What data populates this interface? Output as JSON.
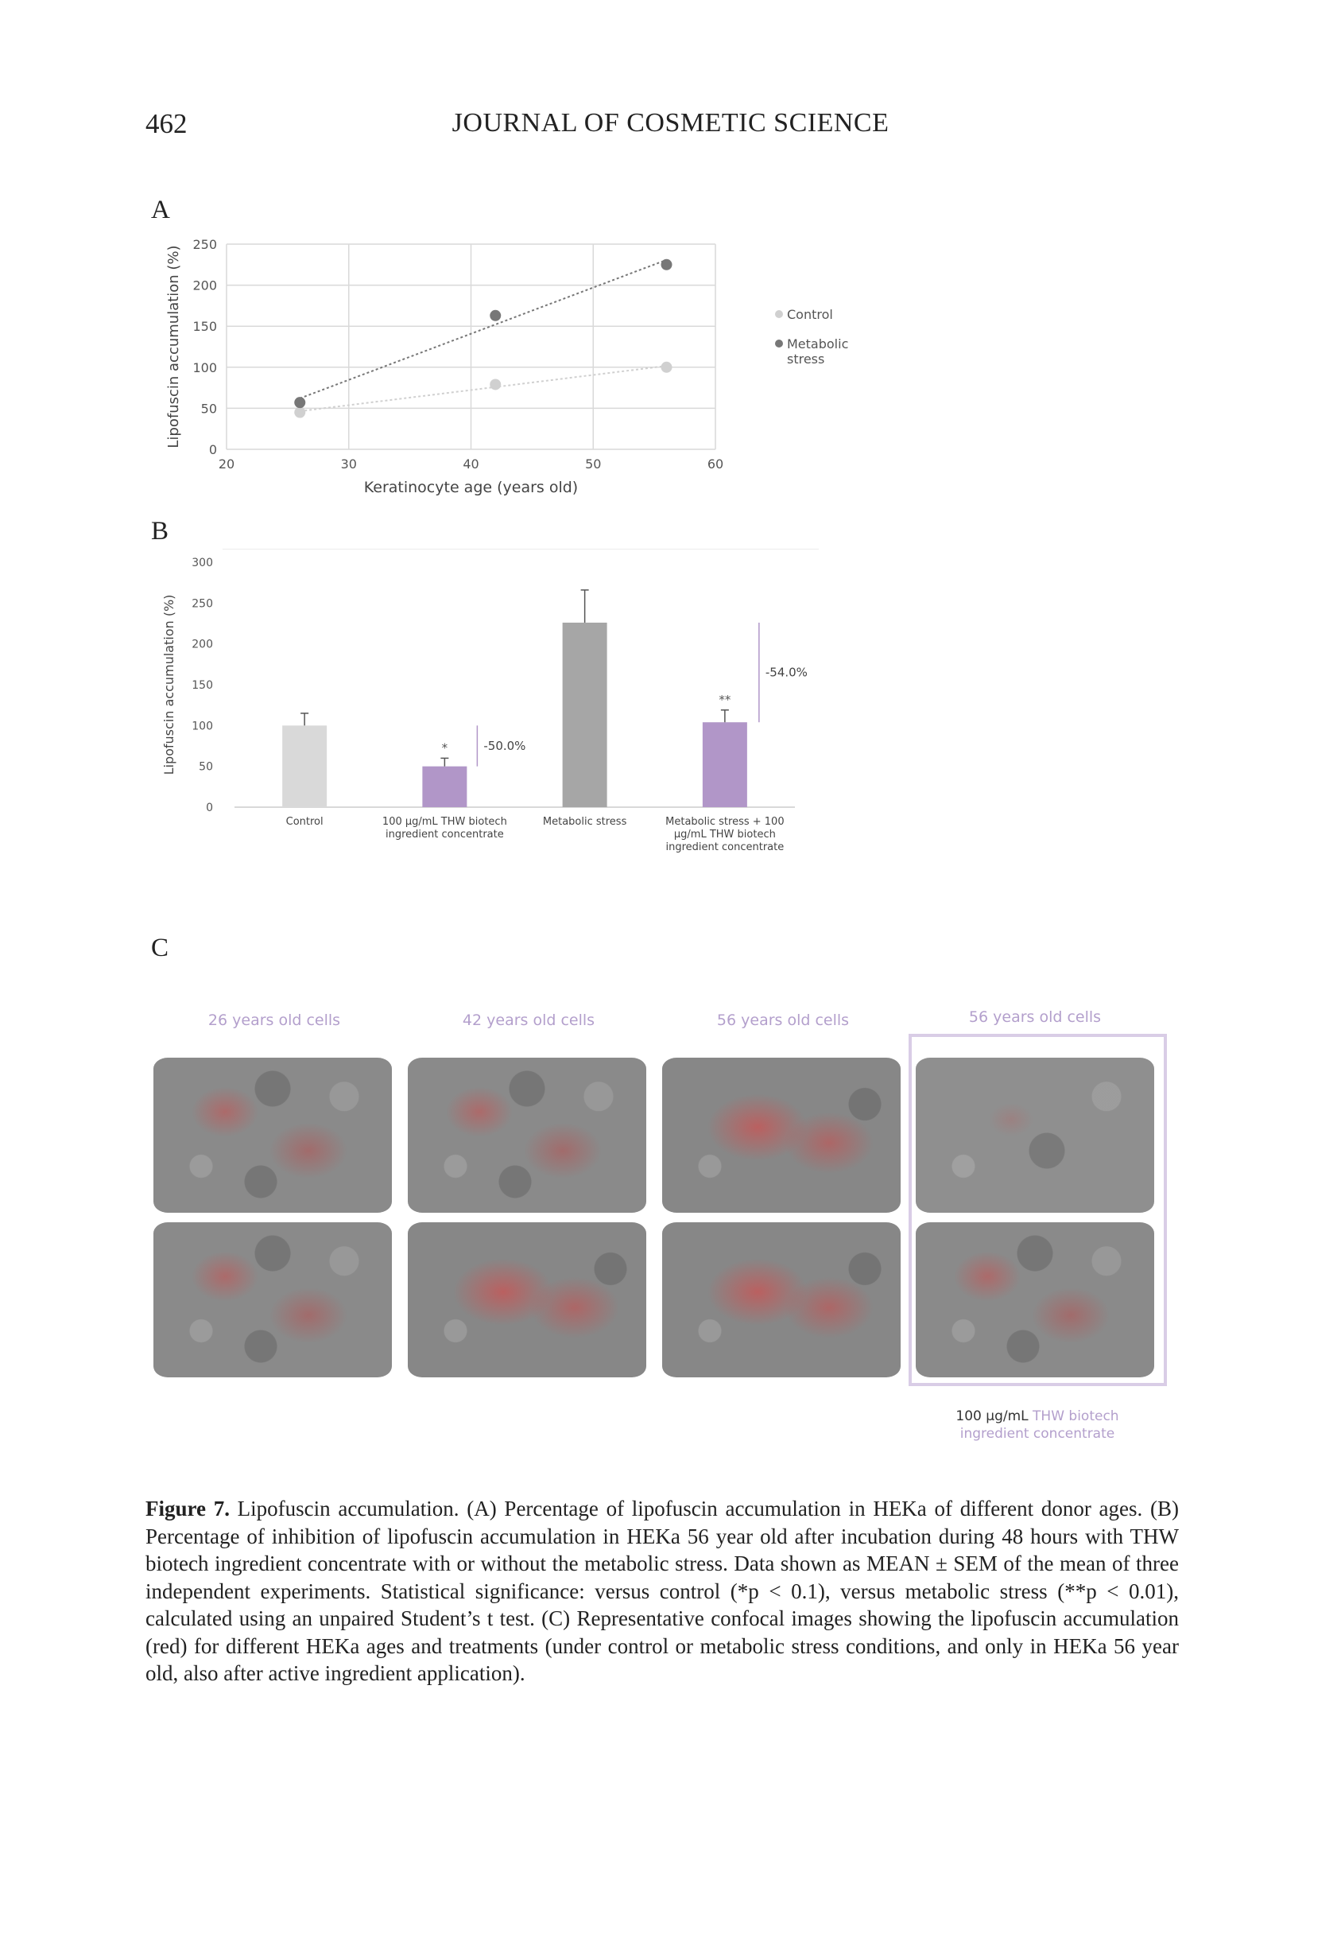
{
  "header": {
    "page_number": "462",
    "journal_title": "JOURNAL OF COSMETIC SCIENCE"
  },
  "panels": {
    "a_label": "A",
    "b_label": "B",
    "c_label": "C"
  },
  "chart_data": [
    {
      "type": "scatter",
      "panel": "A",
      "title": "",
      "xlabel": "Keratinocyte age (years old)",
      "ylabel": "Lipofuscin accumulation (%)",
      "xlim": [
        20,
        60
      ],
      "ylim": [
        0,
        250
      ],
      "x_ticks": [
        "20",
        "30",
        "40",
        "50",
        "60"
      ],
      "y_ticks": [
        "0",
        "50",
        "100",
        "150",
        "200",
        "250"
      ],
      "grid": true,
      "legend_position": "right",
      "trendlines": true,
      "series": [
        {
          "name": "Control",
          "color": "#d0d0d0",
          "x": [
            26,
            42,
            56
          ],
          "y": [
            45,
            79,
            100
          ]
        },
        {
          "name": "Metabolic stress",
          "color": "#777777",
          "x": [
            26,
            42,
            56
          ],
          "y": [
            57,
            163,
            225
          ]
        }
      ]
    },
    {
      "type": "bar",
      "panel": "B",
      "title": "",
      "xlabel": "",
      "ylabel": "Lipofuscin accumulation (%)",
      "ylim": [
        0,
        300
      ],
      "y_ticks": [
        "0",
        "50",
        "100",
        "150",
        "200",
        "250",
        "300"
      ],
      "categories": [
        [
          "Control"
        ],
        [
          "100 µg/mL THW biotech",
          "ingredient concentrate"
        ],
        [
          "Metabolic stress"
        ],
        [
          "Metabolic stress + 100",
          "µg/mL THW biotech",
          "ingredient concentrate"
        ]
      ],
      "values": [
        100,
        50,
        226,
        104
      ],
      "errors": [
        15,
        10,
        40,
        15
      ],
      "colors": [
        "#d9d9d9",
        "#b196c8",
        "#a6a6a6",
        "#b196c8"
      ],
      "significance": [
        "",
        "*",
        "",
        "**"
      ],
      "annotations": [
        {
          "text": "-50.0%",
          "from_value": 100,
          "to_value": 50,
          "near_category": 1
        },
        {
          "text": "-54.0%",
          "from_value": 226,
          "to_value": 104,
          "near_category": 3
        }
      ]
    }
  ],
  "micrographs": {
    "titles": [
      "26 years old cells",
      "42 years old cells",
      "56 years old cells",
      "56 years old cells"
    ],
    "footer_line1_prefix": "100 µg/mL ",
    "footer_line1_accent": "THW biotech",
    "footer_line2": "ingredient concentrate",
    "accent_color": "#b39fcc"
  },
  "caption": {
    "label": "Figure 7.",
    "text": " Lipofuscin accumulation. (A) Percentage of lipofuscin accumulation in HEKa of different donor ages. (B) Percentage of inhibition of lipofuscin accumulation in HEKa 56 year old after incubation during 48 hours with THW biotech ingredient concentrate with or without the metabolic stress. Data shown as MEAN ± SEM of the mean of three independent experiments. Statistical significance: versus control (*p < 0.1), versus metabolic stress (**p < 0.01), calculated using an unpaired Student’s t test. (C) Representative confocal images showing the lipofuscin accumulation (red) for different HEKa ages and treatments (under control or metabolic stress conditions, and only in HEKa 56 year old, also after active ingredient application)."
  }
}
